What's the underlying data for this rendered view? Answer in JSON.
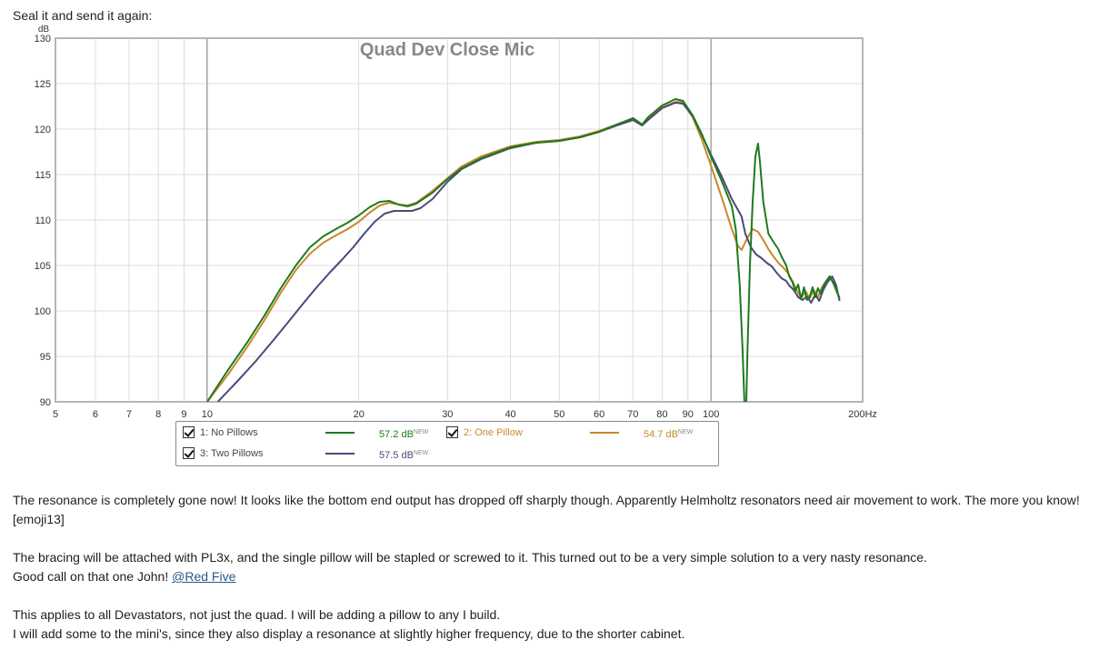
{
  "post": {
    "intro": "Seal it and send it again:",
    "paragraph1": "The resonance is completely gone now! It looks like the bottom end output has dropped off sharply though. Apparently Helmholtz resonators need air movement to work. The more you know! [emoji13]",
    "paragraph2_line1": "The bracing will be attached with PL3x, and the single pillow will be stapled or screwed to it. This turned out to be a very simple solution to a very nasty resonance.",
    "paragraph2_line2_prefix": "Good call on that one John! ",
    "mention": "@Red Five",
    "paragraph3_line1": "This applies to all Devastators, not just the quad. I will be adding a pillow to any I build.",
    "paragraph3_line2": "I will add some to the mini's, since they also display a resonance at slightly higher frequency, due to the shorter cabinet."
  },
  "chart_data": {
    "type": "line",
    "title": "Quad Dev Close Mic",
    "ylabel": "dB",
    "x_scale": "log",
    "xlim": [
      5,
      200
    ],
    "ylim": [
      90,
      130
    ],
    "grid": true,
    "x_ticks": [
      5,
      6,
      7,
      8,
      9,
      10,
      20,
      30,
      40,
      50,
      60,
      70,
      80,
      90,
      100,
      200
    ],
    "x_tick_labels": [
      "5",
      "6",
      "7",
      "8",
      "9",
      "10",
      "20",
      "30",
      "40",
      "50",
      "60",
      "70",
      "80",
      "90",
      "100",
      "200Hz"
    ],
    "y_ticks": [
      90,
      95,
      100,
      105,
      110,
      115,
      120,
      125,
      130
    ],
    "y_tick_labels": [
      "90",
      "95",
      "100",
      "105",
      "110",
      "115",
      "120",
      "125",
      "130"
    ],
    "series": [
      {
        "name": "1: No Pillows",
        "color": "#1e7a1e",
        "level": "57.2 dB",
        "points": [
          [
            10,
            90
          ],
          [
            11,
            93.5
          ],
          [
            12,
            96.5
          ],
          [
            13,
            99.5
          ],
          [
            14,
            102.5
          ],
          [
            15,
            105
          ],
          [
            16,
            107
          ],
          [
            17,
            108.2
          ],
          [
            18,
            109
          ],
          [
            19,
            109.7
          ],
          [
            20,
            110.5
          ],
          [
            21,
            111.4
          ],
          [
            22,
            112
          ],
          [
            23,
            112.1
          ],
          [
            24,
            111.7
          ],
          [
            25,
            111.5
          ],
          [
            26,
            111.8
          ],
          [
            28,
            113
          ],
          [
            30,
            114.5
          ],
          [
            32,
            115.7
          ],
          [
            35,
            116.8
          ],
          [
            40,
            118
          ],
          [
            45,
            118.5
          ],
          [
            50,
            118.7
          ],
          [
            55,
            119.1
          ],
          [
            60,
            119.7
          ],
          [
            65,
            120.5
          ],
          [
            70,
            121.2
          ],
          [
            73,
            120.5
          ],
          [
            75,
            121.3
          ],
          [
            80,
            122.6
          ],
          [
            85,
            123.3
          ],
          [
            88,
            123.1
          ],
          [
            92,
            121.5
          ],
          [
            96,
            119.4
          ],
          [
            100,
            117
          ],
          [
            105,
            114.3
          ],
          [
            110,
            111.5
          ],
          [
            112,
            109
          ],
          [
            114,
            103
          ],
          [
            115.5,
            96
          ],
          [
            116.5,
            90
          ],
          [
            117.5,
            90
          ],
          [
            118.2,
            96
          ],
          [
            119.5,
            105
          ],
          [
            121,
            112
          ],
          [
            122.5,
            117
          ],
          [
            124,
            118.4
          ],
          [
            125,
            116.5
          ],
          [
            127,
            112
          ],
          [
            130,
            108.5
          ],
          [
            133,
            107.6
          ],
          [
            136,
            106.8
          ],
          [
            138,
            106
          ],
          [
            141,
            105
          ],
          [
            143,
            103.8
          ],
          [
            145,
            103.2
          ],
          [
            147,
            102.2
          ],
          [
            149,
            102.9
          ],
          [
            151,
            101.3
          ],
          [
            153,
            102.6
          ],
          [
            155,
            101.2
          ],
          [
            157,
            101.5
          ],
          [
            159,
            102.6
          ],
          [
            161,
            101.5
          ],
          [
            163,
            102.5
          ],
          [
            165,
            101.9
          ],
          [
            168,
            103
          ],
          [
            172,
            103.8
          ],
          [
            176,
            102.8
          ],
          [
            180,
            101.3
          ]
        ]
      },
      {
        "name": "2: One Pillow",
        "color": "#c8882a",
        "level": "54.7 dB",
        "points": [
          [
            10,
            90
          ],
          [
            11,
            93
          ],
          [
            12,
            96
          ],
          [
            13,
            99
          ],
          [
            14,
            102
          ],
          [
            15,
            104.5
          ],
          [
            16,
            106.3
          ],
          [
            17,
            107.5
          ],
          [
            18,
            108.3
          ],
          [
            19,
            109
          ],
          [
            20,
            109.8
          ],
          [
            21,
            110.8
          ],
          [
            22,
            111.6
          ],
          [
            23,
            111.9
          ],
          [
            24,
            111.7
          ],
          [
            25,
            111.6
          ],
          [
            26,
            111.9
          ],
          [
            28,
            113.2
          ],
          [
            30,
            114.6
          ],
          [
            32,
            115.9
          ],
          [
            35,
            117
          ],
          [
            40,
            118.1
          ],
          [
            45,
            118.6
          ],
          [
            50,
            118.8
          ],
          [
            55,
            119.2
          ],
          [
            60,
            119.8
          ],
          [
            65,
            120.5
          ],
          [
            70,
            121.2
          ],
          [
            73,
            120.5
          ],
          [
            75,
            121.2
          ],
          [
            80,
            122.4
          ],
          [
            85,
            123
          ],
          [
            88,
            122.9
          ],
          [
            92,
            121.3
          ],
          [
            96,
            118.8
          ],
          [
            100,
            116
          ],
          [
            105,
            112.5
          ],
          [
            110,
            109
          ],
          [
            113,
            107.2
          ],
          [
            115,
            106.7
          ],
          [
            118,
            108
          ],
          [
            121,
            109
          ],
          [
            124,
            108.7
          ],
          [
            127,
            107.8
          ],
          [
            130,
            106.8
          ],
          [
            133,
            106
          ],
          [
            136,
            105.3
          ],
          [
            139,
            104.8
          ],
          [
            142,
            104.2
          ],
          [
            145,
            103.3
          ],
          [
            148,
            102.3
          ],
          [
            151,
            101.4
          ],
          [
            154,
            102.2
          ],
          [
            157,
            101.4
          ],
          [
            160,
            102.3
          ],
          [
            163,
            101.5
          ],
          [
            166,
            102.6
          ],
          [
            169,
            103.2
          ],
          [
            172,
            103.8
          ],
          [
            175,
            103
          ],
          [
            178,
            102
          ],
          [
            180,
            101.5
          ]
        ]
      },
      {
        "name": "3: Two Pillows",
        "color": "#4a4a7a",
        "level": "57.5 dB",
        "points": [
          [
            10.5,
            90
          ],
          [
            11.5,
            92.3
          ],
          [
            12.5,
            94.5
          ],
          [
            13.5,
            96.7
          ],
          [
            14.5,
            98.8
          ],
          [
            15.5,
            100.8
          ],
          [
            16.5,
            102.6
          ],
          [
            17.5,
            104.2
          ],
          [
            18.5,
            105.6
          ],
          [
            19.5,
            107
          ],
          [
            20.5,
            108.5
          ],
          [
            21.5,
            109.8
          ],
          [
            22.5,
            110.7
          ],
          [
            23.5,
            111
          ],
          [
            24.5,
            111
          ],
          [
            25.5,
            111
          ],
          [
            26.5,
            111.3
          ],
          [
            28,
            112.3
          ],
          [
            30,
            114.2
          ],
          [
            32,
            115.6
          ],
          [
            35,
            116.7
          ],
          [
            40,
            117.9
          ],
          [
            45,
            118.5
          ],
          [
            50,
            118.7
          ],
          [
            55,
            119.1
          ],
          [
            60,
            119.7
          ],
          [
            65,
            120.4
          ],
          [
            70,
            121
          ],
          [
            73,
            120.4
          ],
          [
            75,
            121
          ],
          [
            80,
            122.3
          ],
          [
            85,
            122.9
          ],
          [
            88,
            122.8
          ],
          [
            92,
            121.4
          ],
          [
            96,
            119.3
          ],
          [
            100,
            117.2
          ],
          [
            105,
            114.8
          ],
          [
            110,
            112.3
          ],
          [
            115,
            110.4
          ],
          [
            117,
            108.5
          ],
          [
            120,
            107
          ],
          [
            123,
            106.2
          ],
          [
            126,
            105.8
          ],
          [
            129,
            105.3
          ],
          [
            132,
            104.9
          ],
          [
            135,
            104.2
          ],
          [
            138,
            103.6
          ],
          [
            141,
            103.3
          ],
          [
            143,
            102.8
          ],
          [
            146,
            102.3
          ],
          [
            149,
            101.5
          ],
          [
            152,
            101.2
          ],
          [
            155,
            101.6
          ],
          [
            158,
            100.9
          ],
          [
            161,
            101.8
          ],
          [
            164,
            101.1
          ],
          [
            167,
            102.3
          ],
          [
            170,
            103.1
          ],
          [
            174,
            103.8
          ],
          [
            177,
            102.9
          ],
          [
            180,
            101.1
          ]
        ]
      }
    ]
  }
}
